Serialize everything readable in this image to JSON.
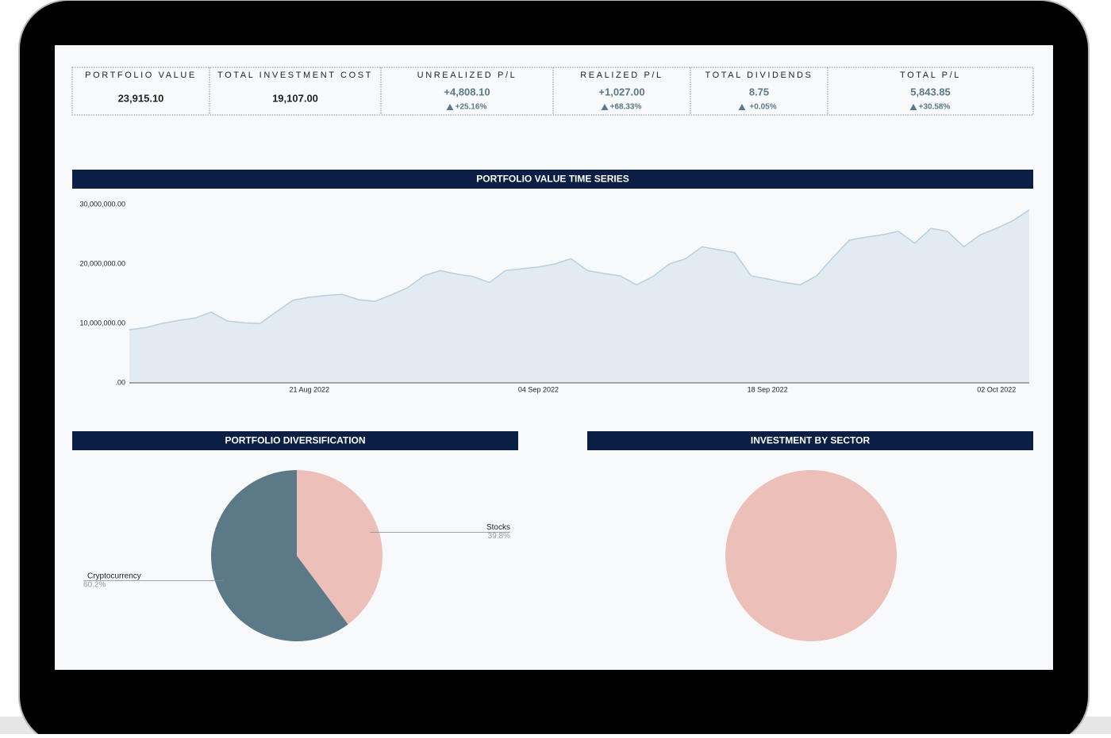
{
  "kpis": [
    {
      "label": "PORTFOLIO VALUE",
      "value": "23,915.10"
    },
    {
      "label": "TOTAL INVESTMENT COST",
      "value": "19,107.00"
    },
    {
      "label": "UNREALIZED P/L",
      "value": "+4,808.10",
      "change": "+25.16%"
    },
    {
      "label": "REALIZED P/L",
      "value": "+1,027.00",
      "change": "+68.33%"
    },
    {
      "label": "TOTAL DIVIDENDS",
      "value": "8.75",
      "change": "+0.05%"
    },
    {
      "label": "TOTAL P/L",
      "value": "5,843.85",
      "change": "+30.58%"
    }
  ],
  "chart_data": [
    {
      "type": "area",
      "title": "PORTFOLIO VALUE TIME SERIES",
      "x": [
        "2022-08-10",
        "2022-08-11",
        "2022-08-12",
        "2022-08-13",
        "2022-08-14",
        "2022-08-15",
        "2022-08-16",
        "2022-08-17",
        "2022-08-18",
        "2022-08-19",
        "2022-08-20",
        "2022-08-21",
        "2022-08-22",
        "2022-08-23",
        "2022-08-24",
        "2022-08-25",
        "2022-08-26",
        "2022-08-27",
        "2022-08-28",
        "2022-08-29",
        "2022-08-30",
        "2022-08-31",
        "2022-09-01",
        "2022-09-02",
        "2022-09-03",
        "2022-09-04",
        "2022-09-05",
        "2022-09-06",
        "2022-09-07",
        "2022-09-08",
        "2022-09-09",
        "2022-09-10",
        "2022-09-11",
        "2022-09-12",
        "2022-09-13",
        "2022-09-14",
        "2022-09-15",
        "2022-09-16",
        "2022-09-17",
        "2022-09-18",
        "2022-09-19",
        "2022-09-20",
        "2022-09-21",
        "2022-09-22",
        "2022-09-23",
        "2022-09-24",
        "2022-09-25",
        "2022-09-26",
        "2022-09-27",
        "2022-09-28",
        "2022-09-29",
        "2022-09-30",
        "2022-10-01",
        "2022-10-02",
        "2022-10-03",
        "2022-10-04"
      ],
      "values": [
        8930000,
        9300000,
        10000000,
        10500000,
        10900000,
        11900000,
        10400000,
        10100000,
        10000000,
        12000000,
        13900000,
        14400000,
        14700000,
        14900000,
        14000000,
        13700000,
        14800000,
        16000000,
        18000000,
        18900000,
        18300000,
        17900000,
        16900000,
        18900000,
        19200000,
        19500000,
        20000000,
        20900000,
        18900000,
        18400000,
        18000000,
        16500000,
        17900000,
        20000000,
        20900000,
        22900000,
        22400000,
        21900000,
        18000000,
        17500000,
        16900000,
        16500000,
        18000000,
        21100000,
        24000000,
        24500000,
        24900000,
        25500000,
        23500000,
        26000000,
        25500000,
        22900000,
        24900000,
        26000000,
        27300000,
        29100000
      ],
      "color": "#e2ebf2",
      "line_color": "#b9cfdd",
      "xlim": [
        "2022-08-10",
        "2022-10-04"
      ],
      "xticks": [
        {
          "value": "2022-08-21",
          "label": "21 Aug 2022"
        },
        {
          "value": "2022-09-04",
          "label": "04 Sep 2022"
        },
        {
          "value": "2022-09-18",
          "label": "18 Sep 2022"
        },
        {
          "value": "2022-10-02",
          "label": "02 Oct 2022"
        }
      ],
      "ylim": [
        0,
        30000000
      ],
      "yticks": [
        {
          "value": 0,
          "label": ".00"
        },
        {
          "value": 10000000,
          "label": "10,000,000.00"
        },
        {
          "value": 20000000,
          "label": "20,000,000.00"
        },
        {
          "value": 30000000,
          "label": "30,000,000.00"
        }
      ]
    },
    {
      "type": "pie",
      "title": "PORTFOLIO DIVERSIFICATION",
      "categories": [
        "Stocks",
        "Cryptocurrency"
      ],
      "values": [
        39.8,
        60.2
      ],
      "value_labels": [
        "39.8%",
        "60.2%"
      ],
      "colors": [
        "#ecc0b9",
        "#5b7986"
      ]
    },
    {
      "type": "pie",
      "title": "INVESTMENT BY SECTOR",
      "categories": [
        null
      ],
      "values": [
        100
      ],
      "colors": [
        "#ecc0b9"
      ]
    }
  ]
}
